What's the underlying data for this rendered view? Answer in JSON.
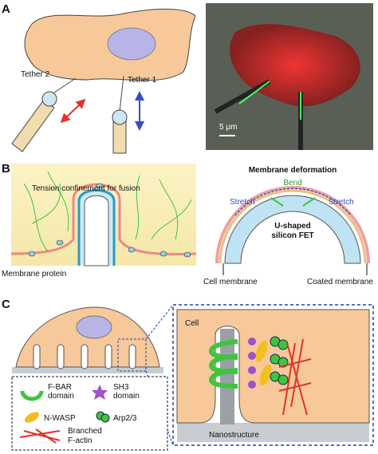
{
  "panel_a": {
    "label": "A",
    "tether_2": "Tether 2",
    "tether_1": "Tether 1",
    "scale_bar": "5 μm"
  },
  "panel_b": {
    "label": "B",
    "left_title": "Tension confinement for fusion",
    "membrane_protein": "Membrane protein",
    "right_title": "Membrane deformation",
    "bend": "Bend",
    "stretch_left": "Stretch",
    "stretch_right": "Stretch",
    "fet": [
      "U-shaped",
      "silicon FET"
    ],
    "cell_membrane": "Cell membrane",
    "coated_membrane": "Coated membrane"
  },
  "panel_c": {
    "label": "C",
    "cell": "Cell",
    "nanostructure": "Nanostructure",
    "legend": {
      "f_bar": [
        "F-BAR",
        "domain"
      ],
      "sh3": [
        "SH3",
        "domain"
      ],
      "n_wasp": "N-WASP",
      "arp": "Arp2/3",
      "actin": [
        "Branched",
        "F-actin"
      ]
    }
  }
}
